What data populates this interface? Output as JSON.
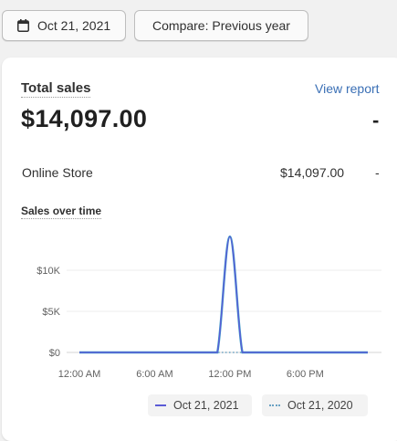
{
  "toolbar": {
    "date_label": "Oct 21, 2021",
    "compare_label": "Compare: Previous year"
  },
  "card": {
    "title": "Total sales",
    "view_report": "View report",
    "total_value": "$14,097.00",
    "total_change": "-",
    "breakdown": {
      "label": "Online Store",
      "value": "$14,097.00",
      "change": "-"
    },
    "chart_title": "Sales over time"
  },
  "legend": {
    "current": "Oct 21, 2021",
    "previous": "Oct 21, 2020"
  },
  "colors": {
    "current_series": "#5b5bd6",
    "previous_series": "#6aa2c4",
    "link": "#3a6fb5"
  },
  "chart_data": {
    "type": "line",
    "x_hours": [
      0,
      1,
      2,
      3,
      4,
      5,
      6,
      7,
      8,
      9,
      10,
      11,
      12,
      13,
      14,
      15,
      16,
      17,
      18,
      19,
      20,
      21,
      22,
      23
    ],
    "xticks": [
      "12:00 AM",
      "6:00 AM",
      "12:00 PM",
      "6:00 PM"
    ],
    "yticks": [
      "$0",
      "$5K",
      "$10K"
    ],
    "ylim": [
      0,
      14500
    ],
    "series": [
      {
        "name": "Oct 21, 2021",
        "style": "solid",
        "values": [
          0,
          0,
          0,
          0,
          0,
          0,
          0,
          0,
          0,
          0,
          0,
          0,
          14097,
          0,
          0,
          0,
          0,
          0,
          0,
          0,
          0,
          0,
          0,
          0
        ]
      },
      {
        "name": "Oct 21, 2020",
        "style": "dotted",
        "values": [
          0,
          0,
          0,
          0,
          0,
          0,
          0,
          0,
          0,
          0,
          0,
          0,
          0,
          0,
          0,
          0,
          0,
          0,
          0,
          0,
          0,
          0,
          0,
          0
        ]
      }
    ]
  }
}
